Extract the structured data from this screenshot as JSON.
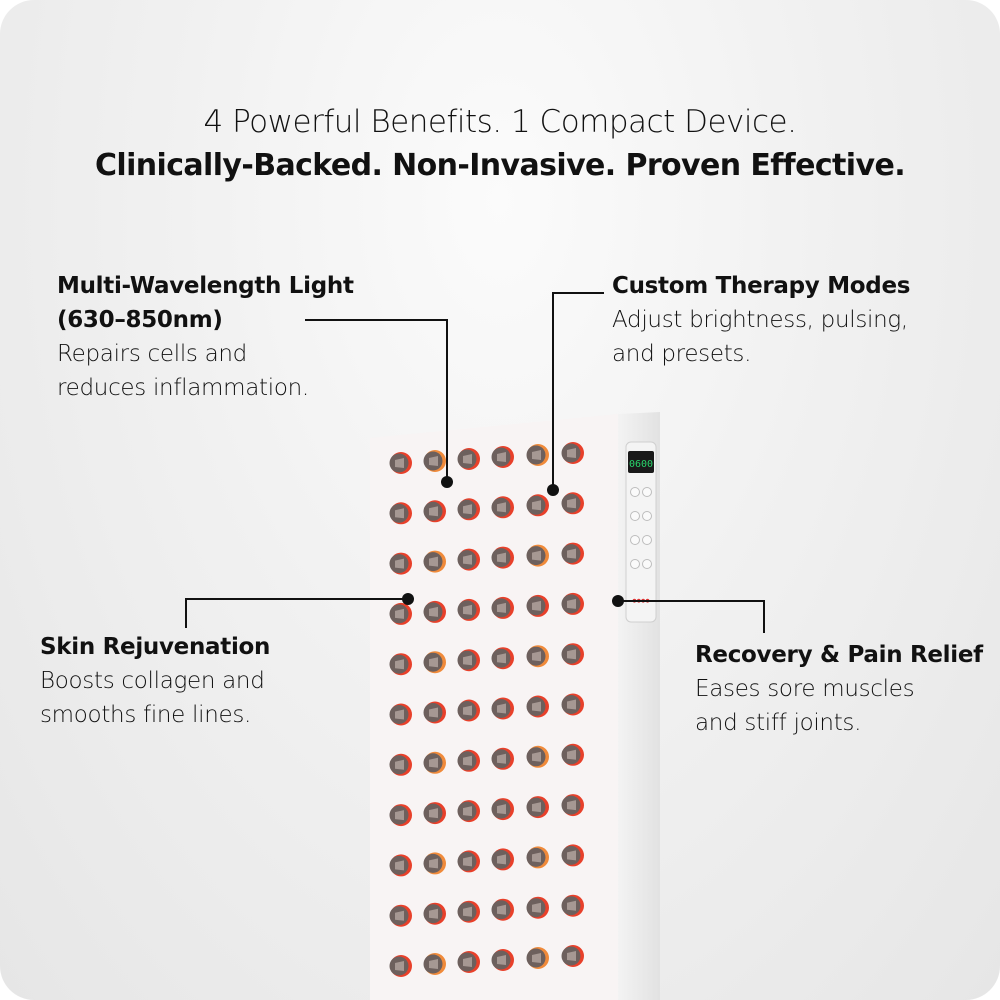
{
  "headline": {
    "line1": "4 Powerful Benefits. 1 Compact Device.",
    "line2": "Clinically-Backed. Non-Invasive. Proven Effective."
  },
  "callouts": [
    {
      "title": "Multi-Wavelength Light (630–850nm)",
      "title_l1": "Multi-Wavelength Light",
      "title_l2": "(630–850nm)",
      "desc_l1": "Repairs cells and",
      "desc_l2": "reduces inflammation."
    },
    {
      "title": "Custom Therapy Modes",
      "desc_l1": "Adjust brightness, pulsing,",
      "desc_l2": "and presets."
    },
    {
      "title": "Skin Rejuvenation",
      "desc_l1": "Boosts collagen and",
      "desc_l2": "smooths fine lines."
    },
    {
      "title": "Recovery & Pain Relief",
      "desc_l1": "Eases sore muscles",
      "desc_l2": "and stiff joints."
    }
  ],
  "device": {
    "display_text": "0600",
    "led_rows": 11,
    "led_cols": 6,
    "colors": {
      "led_red": "#e8402a",
      "led_amber": "#f08a3a",
      "display_green": "#28d46a",
      "panel": "#f7f3f3"
    }
  }
}
